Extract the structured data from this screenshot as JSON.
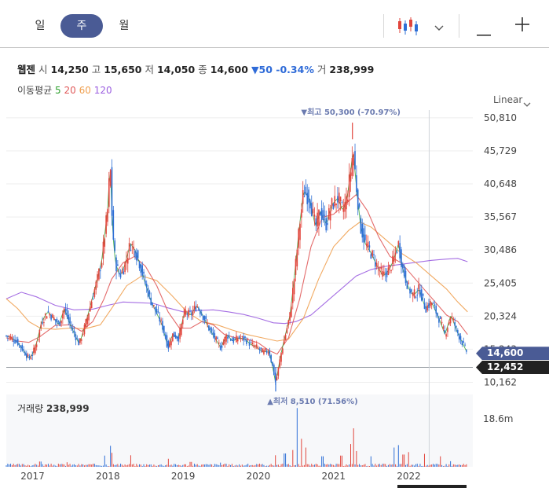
{
  "toolbar": {
    "periods": [
      "일",
      "주",
      "월"
    ],
    "active_period": "주",
    "chart_type_icon": "candlestick-icon",
    "minus_icon": "minus-icon",
    "plus_icon": "plus-icon"
  },
  "info": {
    "name": "웹젠",
    "open_label": "시",
    "open": "14,250",
    "high_label": "고",
    "high": "15,650",
    "low_label": "저",
    "low": "14,050",
    "close_label": "종",
    "close": "14,600",
    "change": "▼50 -0.34%",
    "volume_label": "거",
    "volume": "238,999"
  },
  "moving_average": {
    "label": "이동평균",
    "periods": [
      {
        "value": "5",
        "color": "#2ca02c"
      },
      {
        "value": "20",
        "color": "#e05a5a"
      },
      {
        "value": "60",
        "color": "#f0a050"
      },
      {
        "value": "120",
        "color": "#9b5ee0"
      }
    ]
  },
  "scale_mode": "Linear",
  "colors": {
    "up": "#e2453c",
    "down": "#2e6fd6",
    "ma5": "#2ca02c",
    "ma20": "#e05a5a",
    "ma60": "#f0a050",
    "ma120": "#9b5ee0",
    "accent": "#4a5b95",
    "current_tag": "#4a5b95",
    "cursor_tag": "#222222"
  },
  "chart_data": {
    "type": "candlestick",
    "y_ticks": [
      "50,810",
      "45,729",
      "40,648",
      "35,567",
      "30,486",
      "25,405",
      "20,324",
      "15,243",
      "10,162"
    ],
    "y_tick_values": [
      50810,
      45729,
      40648,
      35567,
      30486,
      25405,
      20324,
      15243,
      10162
    ],
    "x_ticks": [
      "2017",
      "2018",
      "2019",
      "2020",
      "2021",
      "2022"
    ],
    "x_tick_values": [
      2017.0,
      2018.0,
      2019.0,
      2020.0,
      2021.0,
      2022.0
    ],
    "x_range": [
      2016.65,
      2022.85
    ],
    "y_range": [
      9500,
      52000
    ],
    "current_price_label": "14,600",
    "current_price": 14600,
    "cursor_price_label": "12,452",
    "cursor_price": 12452,
    "cursor_x": 2022.27,
    "high_annotation": {
      "text": "▼최고 50,300 (-70.97%)",
      "x": 2021.25,
      "y": 50300
    },
    "low_annotation": {
      "text": "▲최저 8,510 (71.56%)",
      "x": 2020.23,
      "y": 8510
    },
    "price_path": [
      [
        2016.65,
        17300
      ],
      [
        2016.72,
        17000
      ],
      [
        2016.8,
        16300
      ],
      [
        2016.88,
        15000
      ],
      [
        2016.95,
        13800
      ],
      [
        2017.0,
        14500
      ],
      [
        2017.06,
        16500
      ],
      [
        2017.12,
        19500
      ],
      [
        2017.2,
        21000
      ],
      [
        2017.28,
        20000
      ],
      [
        2017.35,
        19000
      ],
      [
        2017.42,
        21500
      ],
      [
        2017.5,
        19000
      ],
      [
        2017.56,
        17500
      ],
      [
        2017.62,
        16000
      ],
      [
        2017.7,
        19000
      ],
      [
        2017.78,
        22500
      ],
      [
        2017.86,
        26000
      ],
      [
        2017.92,
        29000
      ],
      [
        2017.96,
        33000
      ],
      [
        2018.0,
        37000
      ],
      [
        2018.03,
        44000
      ],
      [
        2018.06,
        34000
      ],
      [
        2018.1,
        28500
      ],
      [
        2018.16,
        26500
      ],
      [
        2018.22,
        28000
      ],
      [
        2018.3,
        31500
      ],
      [
        2018.36,
        30500
      ],
      [
        2018.42,
        28500
      ],
      [
        2018.48,
        26000
      ],
      [
        2018.56,
        23000
      ],
      [
        2018.64,
        21000
      ],
      [
        2018.72,
        19000
      ],
      [
        2018.8,
        15500
      ],
      [
        2018.86,
        17500
      ],
      [
        2018.94,
        17000
      ],
      [
        2019.02,
        21000
      ],
      [
        2019.1,
        20500
      ],
      [
        2019.18,
        22000
      ],
      [
        2019.26,
        20500
      ],
      [
        2019.34,
        18500
      ],
      [
        2019.42,
        17000
      ],
      [
        2019.5,
        15500
      ],
      [
        2019.58,
        17500
      ],
      [
        2019.66,
        16500
      ],
      [
        2019.74,
        17000
      ],
      [
        2019.82,
        16800
      ],
      [
        2019.9,
        16000
      ],
      [
        2019.98,
        15500
      ],
      [
        2020.06,
        14800
      ],
      [
        2020.14,
        15000
      ],
      [
        2020.2,
        12000
      ],
      [
        2020.23,
        10000
      ],
      [
        2020.3,
        14500
      ],
      [
        2020.36,
        17500
      ],
      [
        2020.42,
        20500
      ],
      [
        2020.48,
        26500
      ],
      [
        2020.54,
        33500
      ],
      [
        2020.6,
        39500
      ],
      [
        2020.68,
        38500
      ],
      [
        2020.76,
        34000
      ],
      [
        2020.82,
        36500
      ],
      [
        2020.9,
        34500
      ],
      [
        2020.98,
        37500
      ],
      [
        2021.06,
        38500
      ],
      [
        2021.12,
        36500
      ],
      [
        2021.18,
        38500
      ],
      [
        2021.22,
        42000
      ],
      [
        2021.26,
        46000
      ],
      [
        2021.3,
        40500
      ],
      [
        2021.36,
        34000
      ],
      [
        2021.42,
        31500
      ],
      [
        2021.5,
        30000
      ],
      [
        2021.58,
        28000
      ],
      [
        2021.66,
        26500
      ],
      [
        2021.74,
        27500
      ],
      [
        2021.8,
        29000
      ],
      [
        2021.86,
        31500
      ],
      [
        2021.92,
        27500
      ],
      [
        2022.0,
        24500
      ],
      [
        2022.06,
        23500
      ],
      [
        2022.14,
        24500
      ],
      [
        2022.22,
        21500
      ],
      [
        2022.3,
        22500
      ],
      [
        2022.4,
        20000
      ],
      [
        2022.48,
        17500
      ],
      [
        2022.56,
        20500
      ],
      [
        2022.64,
        18000
      ],
      [
        2022.72,
        16000
      ],
      [
        2022.78,
        14600
      ]
    ],
    "moving_averages": {
      "ma20": [
        [
          2016.65,
          17000
        ],
        [
          2016.8,
          16500
        ],
        [
          2016.95,
          16300
        ],
        [
          2017.1,
          17200
        ],
        [
          2017.3,
          18900
        ],
        [
          2017.5,
          19000
        ],
        [
          2017.65,
          18000
        ],
        [
          2017.8,
          19500
        ],
        [
          2017.95,
          23000
        ],
        [
          2018.05,
          26000
        ],
        [
          2018.2,
          28500
        ],
        [
          2018.35,
          29500
        ],
        [
          2018.5,
          28000
        ],
        [
          2018.65,
          25000
        ],
        [
          2018.8,
          21000
        ],
        [
          2018.95,
          18500
        ],
        [
          2019.1,
          18500
        ],
        [
          2019.25,
          19500
        ],
        [
          2019.4,
          19000
        ],
        [
          2019.55,
          17500
        ],
        [
          2019.7,
          17000
        ],
        [
          2019.85,
          16800
        ],
        [
          2020.0,
          16200
        ],
        [
          2020.15,
          15000
        ],
        [
          2020.25,
          14500
        ],
        [
          2020.4,
          17000
        ],
        [
          2020.55,
          23000
        ],
        [
          2020.7,
          31000
        ],
        [
          2020.85,
          35500
        ],
        [
          2021.0,
          36000
        ],
        [
          2021.15,
          37500
        ],
        [
          2021.3,
          39000
        ],
        [
          2021.45,
          36500
        ],
        [
          2021.6,
          32500
        ],
        [
          2021.75,
          29500
        ],
        [
          2021.9,
          28500
        ],
        [
          2022.05,
          26500
        ],
        [
          2022.2,
          24500
        ],
        [
          2022.35,
          22500
        ],
        [
          2022.5,
          20500
        ],
        [
          2022.65,
          19500
        ],
        [
          2022.78,
          17500
        ]
      ],
      "ma60": [
        [
          2016.65,
          23000
        ],
        [
          2016.8,
          21500
        ],
        [
          2016.95,
          19500
        ],
        [
          2017.1,
          18500
        ],
        [
          2017.3,
          18300
        ],
        [
          2017.5,
          18500
        ],
        [
          2017.7,
          18400
        ],
        [
          2017.9,
          19000
        ],
        [
          2018.05,
          21500
        ],
        [
          2018.25,
          25000
        ],
        [
          2018.45,
          26500
        ],
        [
          2018.65,
          25800
        ],
        [
          2018.85,
          23500
        ],
        [
          2019.05,
          21000
        ],
        [
          2019.25,
          19500
        ],
        [
          2019.45,
          19000
        ],
        [
          2019.65,
          18200
        ],
        [
          2019.85,
          17500
        ],
        [
          2020.05,
          17000
        ],
        [
          2020.25,
          16500
        ],
        [
          2020.4,
          16800
        ],
        [
          2020.6,
          20000
        ],
        [
          2020.8,
          26000
        ],
        [
          2021.0,
          31000
        ],
        [
          2021.2,
          33500
        ],
        [
          2021.35,
          34800
        ],
        [
          2021.5,
          34000
        ],
        [
          2021.7,
          32000
        ],
        [
          2021.9,
          30000
        ],
        [
          2022.1,
          28500
        ],
        [
          2022.3,
          26500
        ],
        [
          2022.5,
          24500
        ],
        [
          2022.65,
          22500
        ],
        [
          2022.78,
          21000
        ]
      ],
      "ma120": [
        [
          2016.65,
          23000
        ],
        [
          2016.85,
          24000
        ],
        [
          2017.05,
          23300
        ],
        [
          2017.3,
          22000
        ],
        [
          2017.55,
          21300
        ],
        [
          2017.8,
          21400
        ],
        [
          2018.0,
          22000
        ],
        [
          2018.2,
          22500
        ],
        [
          2018.4,
          22400
        ],
        [
          2018.6,
          22300
        ],
        [
          2018.8,
          21600
        ],
        [
          2019.0,
          21000
        ],
        [
          2019.2,
          21200
        ],
        [
          2019.4,
          21300
        ],
        [
          2019.6,
          21000
        ],
        [
          2019.8,
          20600
        ],
        [
          2020.0,
          20000
        ],
        [
          2020.2,
          19300
        ],
        [
          2020.35,
          19200
        ],
        [
          2020.5,
          19500
        ],
        [
          2020.7,
          20500
        ],
        [
          2020.9,
          22500
        ],
        [
          2021.1,
          24500
        ],
        [
          2021.3,
          26500
        ],
        [
          2021.5,
          27500
        ],
        [
          2021.7,
          28000
        ],
        [
          2021.9,
          28300
        ],
        [
          2022.1,
          28600
        ],
        [
          2022.3,
          28900
        ],
        [
          2022.5,
          29100
        ],
        [
          2022.65,
          29200
        ],
        [
          2022.78,
          28700
        ]
      ]
    },
    "volume": {
      "label": "거래량",
      "value": "238,999",
      "scale_label": "18.6m",
      "scale_value": 18600000,
      "ylim": [
        0,
        20000000
      ],
      "spikes": [
        [
          2017.1,
          1500000
        ],
        [
          2017.45,
          1300000
        ],
        [
          2017.95,
          3200000
        ],
        [
          2018.03,
          6000000
        ],
        [
          2018.06,
          4000000
        ],
        [
          2018.3,
          3300000
        ],
        [
          2018.8,
          2300000
        ],
        [
          2019.1,
          1400000
        ],
        [
          2019.5,
          1200000
        ],
        [
          2020.23,
          3300000
        ],
        [
          2020.35,
          3800000
        ],
        [
          2020.45,
          4800000
        ],
        [
          2020.52,
          16800000
        ],
        [
          2020.57,
          8000000
        ],
        [
          2020.63,
          5500000
        ],
        [
          2020.85,
          3000000
        ],
        [
          2021.1,
          3200000
        ],
        [
          2021.22,
          6500000
        ],
        [
          2021.26,
          11000000
        ],
        [
          2021.3,
          4500000
        ],
        [
          2021.5,
          3000000
        ],
        [
          2021.8,
          5500000
        ],
        [
          2021.86,
          6200000
        ],
        [
          2021.93,
          3500000
        ],
        [
          2022.0,
          4200000
        ],
        [
          2022.2,
          3700000
        ],
        [
          2022.42,
          3000000
        ],
        [
          2022.55,
          1600000
        ]
      ]
    }
  }
}
